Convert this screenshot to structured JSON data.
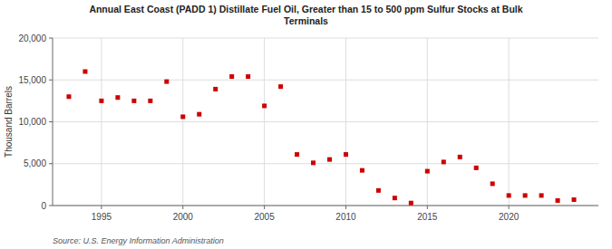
{
  "chart_data": {
    "type": "scatter",
    "title": "Annual East Coast (PADD 1) Distillate Fuel Oil, Greater than 15 to 500 ppm Sulfur Stocks at Bulk\nTerminals",
    "ylabel": "Thousand Barrels",
    "source": "Source: U.S. Energy Information Administration",
    "x": [
      1993,
      1994,
      1995,
      1996,
      1997,
      1998,
      1999,
      2000,
      2001,
      2002,
      2003,
      2004,
      2005,
      2006,
      2007,
      2008,
      2009,
      2010,
      2011,
      2012,
      2013,
      2014,
      2015,
      2016,
      2017,
      2018,
      2019,
      2020,
      2021,
      2022,
      2023,
      2024
    ],
    "values": [
      13000,
      16000,
      12500,
      12900,
      12500,
      12500,
      14800,
      10600,
      10900,
      13900,
      15400,
      15400,
      11900,
      14200,
      6100,
      5100,
      5500,
      6100,
      4200,
      1800,
      900,
      300,
      4100,
      5200,
      5800,
      4500,
      2600,
      1200,
      1200,
      1200,
      600,
      700
    ],
    "color": "#cc0000",
    "marker": "square",
    "xlim": [
      1992.0,
      2025.5
    ],
    "xticks": [
      1995,
      2000,
      2005,
      2010,
      2015,
      2020
    ],
    "ylim": [
      0,
      20000
    ],
    "yticks": [
      0,
      {
        "value": 5000,
        "label": "5,000"
      },
      {
        "value": 10000,
        "label": "10,000"
      },
      {
        "value": 15000,
        "label": "15,000"
      },
      {
        "value": 20000,
        "label": "20,000"
      }
    ],
    "grid": true
  }
}
